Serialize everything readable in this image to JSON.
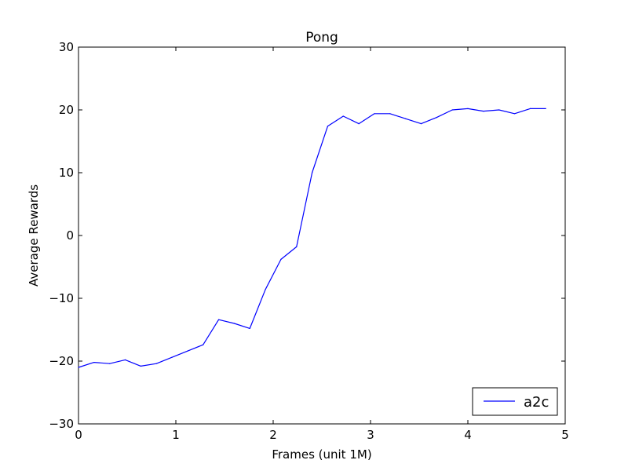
{
  "chart_data": {
    "type": "line",
    "title": "Pong",
    "xlabel": "Frames (unit 1M)",
    "ylabel": "Average Rewards",
    "xlim": [
      0,
      5
    ],
    "ylim": [
      -30,
      30
    ],
    "xticks": [
      0,
      1,
      2,
      3,
      4,
      5
    ],
    "xtick_labels": [
      "0",
      "1",
      "2",
      "3",
      "4",
      "5"
    ],
    "yticks": [
      -30,
      -20,
      -10,
      0,
      10,
      20,
      30
    ],
    "ytick_labels": [
      "−30",
      "−20",
      "−10",
      "0",
      "10",
      "20",
      "30"
    ],
    "grid": false,
    "legend_position": "lower-right",
    "series": [
      {
        "name": "a2c",
        "color": "#0000ff",
        "x": [
          0.0,
          0.16,
          0.32,
          0.48,
          0.64,
          0.8,
          0.96,
          1.12,
          1.28,
          1.44,
          1.6,
          1.76,
          1.92,
          2.08,
          2.24,
          2.4,
          2.56,
          2.72,
          2.88,
          3.04,
          3.2,
          3.36,
          3.52,
          3.68,
          3.84,
          4.0,
          4.16,
          4.32,
          4.48,
          4.64,
          4.8
        ],
        "y": [
          -21.0,
          -20.2,
          -20.4,
          -19.8,
          -20.8,
          -20.4,
          -19.4,
          -18.4,
          -17.4,
          -13.4,
          -14.0,
          -14.8,
          -8.6,
          -3.8,
          -1.8,
          10.0,
          17.4,
          19.0,
          17.8,
          19.4,
          19.4,
          18.6,
          17.8,
          18.8,
          20.0,
          20.2,
          19.8,
          20.0,
          19.4,
          20.2,
          20.2
        ]
      }
    ]
  }
}
